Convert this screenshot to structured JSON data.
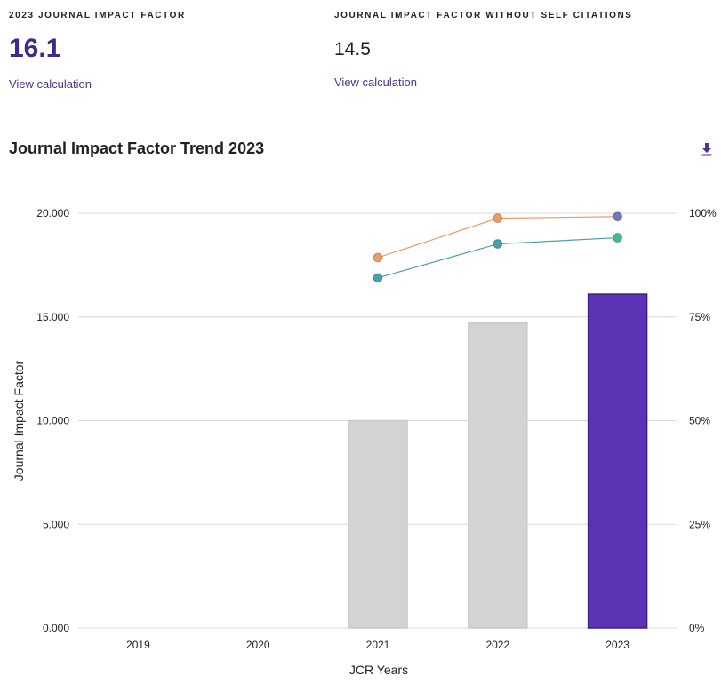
{
  "metrics": {
    "jif": {
      "label": "2023 JOURNAL IMPACT FACTOR",
      "value": "16.1",
      "link": "View calculation"
    },
    "jif_no_self": {
      "label": "JOURNAL IMPACT FACTOR WITHOUT SELF CITATIONS",
      "value": "14.5",
      "link": "View calculation"
    }
  },
  "section": {
    "title": "Journal Impact Factor Trend 2023"
  },
  "icons": {
    "download": "download-icon"
  },
  "colors": {
    "accent": "#5b34b6",
    "bar_past": "#d3d3d3",
    "line_orange": "#ee9a64",
    "line_teal": "#4a9fac",
    "point_green": "#47b98f",
    "point_slate": "#7379b5"
  },
  "chart_data": {
    "type": "bar",
    "categories": [
      "2019",
      "2020",
      "2021",
      "2022",
      "2023"
    ],
    "xlabel": "JCR Years",
    "ylabel": "Journal Impact Factor",
    "ylim": [
      0,
      20
    ],
    "y_ticks": [
      "0.000",
      "5.000",
      "10.000",
      "15.000",
      "20.000"
    ],
    "y2_ticks": [
      "0%",
      "25%",
      "50%",
      "75%",
      "100%"
    ],
    "y2lim": [
      0,
      100
    ],
    "grid": true,
    "bars": [
      null,
      null,
      10.0,
      14.7,
      16.1
    ],
    "lines": [
      {
        "values": [
          null,
          null,
          89.3,
          98.8,
          99.2
        ],
        "color": "#ee9a64"
      },
      {
        "values": [
          null,
          null,
          84.4,
          92.6,
          94.1
        ],
        "color": "#4a9fac"
      }
    ]
  }
}
